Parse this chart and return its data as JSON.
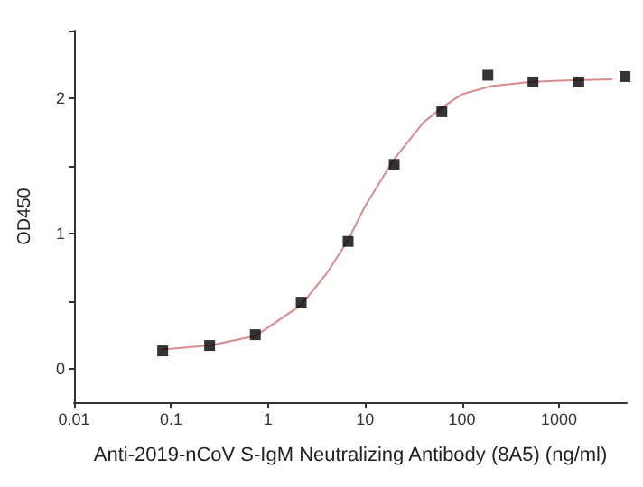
{
  "chart_data": {
    "type": "scatter",
    "xlabel": "Anti-2019-nCoV S-IgM Neutralizing Antibody (8A5) (ng/ml)",
    "ylabel": "OD450",
    "log": "x",
    "grid": false,
    "xlim": [
      0.01,
      5000
    ],
    "xticks": [
      0.01,
      0.1,
      1,
      10,
      100,
      1000
    ],
    "ylim": [
      -0.25,
      2.5
    ],
    "yticks": [
      0,
      {
        "value": 0.5,
        "label": null
      },
      1,
      {
        "value": 1.5,
        "label": null
      },
      2,
      {
        "value": 2.5,
        "label": null
      }
    ],
    "series": [
      {
        "type": "line",
        "color": "#d98b8b",
        "marker": "none",
        "line_style": "solid",
        "x": [
          0.082,
          0.25,
          0.74,
          2.2,
          4,
          6.7,
          10,
          20,
          40,
          62,
          100,
          200,
          500,
          1000,
          3500
        ],
        "values": [
          0.14,
          0.17,
          0.24,
          0.47,
          0.7,
          0.95,
          1.2,
          1.55,
          1.82,
          1.93,
          2.03,
          2.09,
          2.12,
          2.13,
          2.14
        ]
      },
      {
        "color": "#000000",
        "marker": "square",
        "x": [
          0.082,
          0.25,
          0.74,
          2.2,
          6.7,
          20,
          62,
          185,
          540,
          1600,
          4800
        ],
        "values": [
          0.13,
          0.17,
          0.25,
          0.49,
          0.94,
          1.51,
          1.9,
          2.17,
          2.12,
          2.12,
          2.16
        ]
      }
    ]
  }
}
